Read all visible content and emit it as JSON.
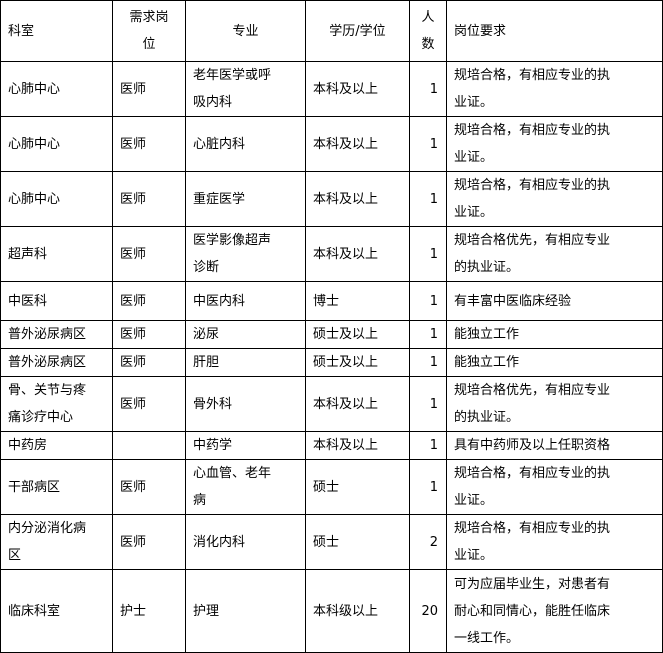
{
  "table": {
    "headers": [
      {
        "lines": [
          "科室"
        ]
      },
      {
        "lines": [
          "需求岗",
          "位"
        ]
      },
      {
        "lines": [
          "专业"
        ]
      },
      {
        "lines": [
          "学历/学位"
        ]
      },
      {
        "lines": [
          "人",
          "数"
        ]
      },
      {
        "lines": [
          "岗位要求"
        ]
      }
    ],
    "rows": [
      {
        "dept": [
          "心肺中心"
        ],
        "post": [
          "医师"
        ],
        "major": [
          "老年医学或呼",
          "吸内科"
        ],
        "edu": [
          "本科及以上"
        ],
        "count": "1",
        "req": [
          "规培合格，有相应专业的执",
          "业证。"
        ]
      },
      {
        "dept": [
          "心肺中心"
        ],
        "post": [
          "医师"
        ],
        "major": [
          "心脏内科"
        ],
        "edu": [
          "本科及以上"
        ],
        "count": "1",
        "req": [
          "规培合格，有相应专业的执",
          "业证。"
        ]
      },
      {
        "dept": [
          "心肺中心"
        ],
        "post": [
          "医师"
        ],
        "major": [
          "重症医学"
        ],
        "edu": [
          "本科及以上"
        ],
        "count": "1",
        "req": [
          "规培合格，有相应专业的执",
          "业证。"
        ]
      },
      {
        "dept": [
          "超声科"
        ],
        "post": [
          "医师"
        ],
        "major": [
          "医学影像超声",
          "诊断"
        ],
        "edu": [
          "本科及以上"
        ],
        "count": "1",
        "req": [
          "规培合格优先，有相应专业",
          "的执业证。"
        ]
      },
      {
        "dept": [
          "中医科"
        ],
        "post": [
          "医师"
        ],
        "major": [
          "中医内科"
        ],
        "edu": [
          "博士"
        ],
        "count": "1",
        "req": [
          "有丰富中医临床经验"
        ]
      },
      {
        "dept": [
          "普外泌尿病区"
        ],
        "post": [
          "医师"
        ],
        "major": [
          "泌尿"
        ],
        "edu": [
          "硕士及以上"
        ],
        "count": "1",
        "req": [
          "能独立工作"
        ]
      },
      {
        "dept": [
          "普外泌尿病区"
        ],
        "post": [
          "医师"
        ],
        "major": [
          "肝胆"
        ],
        "edu": [
          "硕士及以上"
        ],
        "count": "1",
        "req": [
          "能独立工作"
        ]
      },
      {
        "dept": [
          "骨、关节与疼",
          "痛诊疗中心"
        ],
        "post": [
          "医师"
        ],
        "major": [
          "骨外科"
        ],
        "edu": [
          "本科及以上"
        ],
        "count": "1",
        "req": [
          "规培合格优先，有相应专业",
          "的执业证。"
        ]
      },
      {
        "dept": [
          "中药房"
        ],
        "post": [
          ""
        ],
        "major": [
          "中药学"
        ],
        "edu": [
          "本科及以上"
        ],
        "count": "1",
        "req": [
          "具有中药师及以上任职资格"
        ]
      },
      {
        "dept": [
          "干部病区"
        ],
        "post": [
          "医师"
        ],
        "major": [
          "心血管、老年",
          "病"
        ],
        "edu": [
          "硕士"
        ],
        "count": "1",
        "req": [
          "规培合格，有相应专业的执",
          "业证。"
        ]
      },
      {
        "dept": [
          "内分泌消化病",
          "区"
        ],
        "post": [
          "医师"
        ],
        "major": [
          "消化内科"
        ],
        "edu": [
          "硕士"
        ],
        "count": "2",
        "req": [
          "规培合格，有相应专业的执",
          "业证。"
        ]
      },
      {
        "dept": [
          "临床科室"
        ],
        "post": [
          "护士"
        ],
        "major": [
          "护理"
        ],
        "edu": [
          "本科级以上"
        ],
        "count": "20",
        "req": [
          "可为应届毕业生，对患者有",
          "耐心和同情心，能胜任临床",
          "一线工作。"
        ]
      }
    ]
  }
}
